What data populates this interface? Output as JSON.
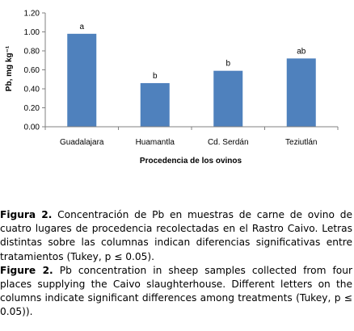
{
  "chart_data": {
    "type": "bar",
    "categories": [
      "Guadalajara",
      "Huamantla",
      "Cd. Serdán",
      "Teziutlán"
    ],
    "values": [
      0.98,
      0.46,
      0.59,
      0.72
    ],
    "significance_letters": [
      "a",
      "b",
      "b",
      "ab"
    ],
    "xlabel": "Procedencia de los ovinos",
    "ylabel": "Pb, mg kg⁻¹",
    "ylim": [
      0,
      1.2
    ],
    "yticks": [
      "0.00",
      "0.20",
      "0.40",
      "0.60",
      "0.80",
      "1.00",
      "1.20"
    ],
    "bar_color": "#4F81BD",
    "grid": false,
    "legend": "none"
  },
  "caption": {
    "es_label": "Figura 2.",
    "es_text": "Concentración de Pb en muestras de carne de ovino de cuatro lugares de procedencia recolectadas en el Rastro Caivo. Letras distintas sobre las columnas indican diferencias significativas entre tratamientos (Tukey, p ≤ 0.05).",
    "en_label": "Figure 2.",
    "en_text": "Pb concentration in sheep samples collected from four places supplying the Caivo slaughterhouse. Different letters on the columns indicate significant differences among treatments (Tukey, p ≤ 0.05))."
  }
}
